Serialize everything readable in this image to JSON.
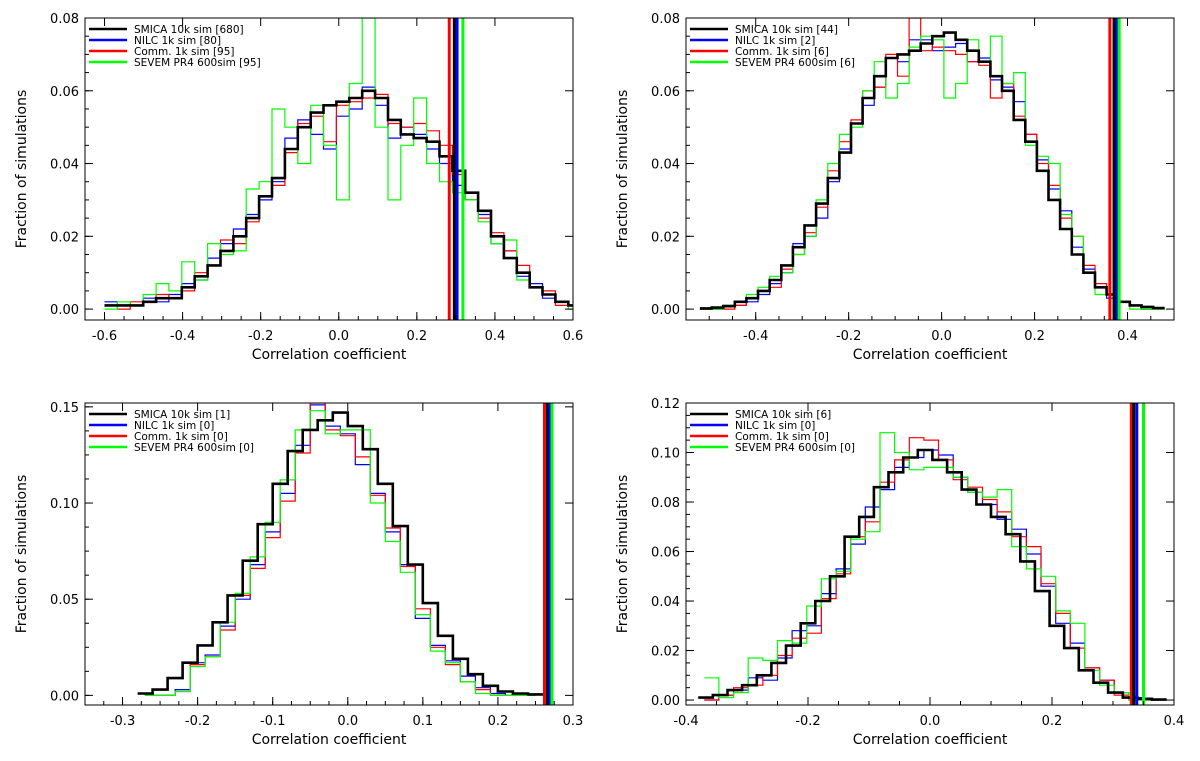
{
  "chart_data": [
    {
      "type": "histogram",
      "xlabel": "Correlation coefficient",
      "ylabel": "Fraction of simulations",
      "xlim": [
        -0.65,
        0.6
      ],
      "ylim": [
        -0.003,
        0.08
      ],
      "xticks": [
        -0.6,
        -0.4,
        -0.2,
        0.0,
        0.2,
        0.4,
        0.6
      ],
      "xtick_labels": [
        "-0.6",
        "-0.4",
        "-0.2",
        "0.0",
        "0.2",
        "0.4",
        "0.6"
      ],
      "yticks": [
        0.0,
        0.02,
        0.04,
        0.06,
        0.08
      ],
      "ytick_labels": [
        "0.00",
        "0.02",
        "0.04",
        "0.06",
        "0.08"
      ],
      "legend_position": "top-left",
      "series": [
        {
          "name": "SMICA 10k sim [680]",
          "color": "#000000",
          "width": 2.6,
          "x0": -0.6,
          "binw": 0.033,
          "values": [
            0.001,
            0.001,
            0.001,
            0.002,
            0.003,
            0.003,
            0.006,
            0.009,
            0.012,
            0.016,
            0.02,
            0.025,
            0.031,
            0.036,
            0.044,
            0.05,
            0.054,
            0.056,
            0.057,
            0.058,
            0.06,
            0.058,
            0.052,
            0.048,
            0.047,
            0.046,
            0.042,
            0.038,
            0.032,
            0.027,
            0.02,
            0.014,
            0.01,
            0.006,
            0.004,
            0.002,
            0.001
          ]
        },
        {
          "name": "NILC 1k sim [80]",
          "color": "#0000ff",
          "width": 1.2,
          "x0": -0.6,
          "binw": 0.033,
          "values": [
            0.002,
            0.001,
            0.001,
            0.003,
            0.002,
            0.004,
            0.007,
            0.008,
            0.014,
            0.018,
            0.022,
            0.026,
            0.03,
            0.035,
            0.047,
            0.052,
            0.048,
            0.044,
            0.053,
            0.055,
            0.061,
            0.056,
            0.047,
            0.05,
            0.048,
            0.044,
            0.04,
            0.034,
            0.03,
            0.026,
            0.018,
            0.016,
            0.009,
            0.007,
            0.003,
            0.002,
            0.001
          ]
        },
        {
          "name": "Comm. 1k sim [95]",
          "color": "#ff0000",
          "width": 1.2,
          "x0": -0.6,
          "binw": 0.033,
          "values": [
            0.001,
            0.0,
            0.002,
            0.002,
            0.004,
            0.003,
            0.005,
            0.01,
            0.012,
            0.019,
            0.018,
            0.024,
            0.031,
            0.034,
            0.043,
            0.051,
            0.053,
            0.046,
            0.056,
            0.057,
            0.058,
            0.059,
            0.051,
            0.05,
            0.051,
            0.049,
            0.045,
            0.037,
            0.03,
            0.025,
            0.021,
            0.016,
            0.012,
            0.006,
            0.005,
            0.001,
            0.001
          ]
        },
        {
          "name": "SEVEM PR4 600sim [95]",
          "color": "#00ff00",
          "width": 1.2,
          "x0": -0.6,
          "binw": 0.033,
          "values": [
            0.0,
            0.002,
            0.001,
            0.004,
            0.007,
            0.005,
            0.013,
            0.008,
            0.018,
            0.015,
            0.016,
            0.033,
            0.035,
            0.055,
            0.05,
            0.04,
            0.056,
            0.045,
            0.03,
            0.062,
            0.08,
            0.05,
            0.03,
            0.045,
            0.058,
            0.04,
            0.035,
            0.032,
            0.03,
            0.024,
            0.018,
            0.019,
            0.008,
            0.006,
            0.004,
            0.002,
            0.0
          ]
        }
      ],
      "vlines": [
        {
          "x": 0.283,
          "color": "#ff0000"
        },
        {
          "x": 0.296,
          "color": "#000000"
        },
        {
          "x": 0.303,
          "color": "#0000ff"
        },
        {
          "x": 0.318,
          "color": "#00ff00"
        }
      ]
    },
    {
      "type": "histogram",
      "xlabel": "Correlation coefficient",
      "ylabel": "Fraction of simulations",
      "xlim": [
        -0.55,
        0.5
      ],
      "ylim": [
        -0.003,
        0.08
      ],
      "xticks": [
        -0.4,
        -0.2,
        0.0,
        0.2,
        0.4
      ],
      "xtick_labels": [
        "-0.4",
        "-0.2",
        "0.0",
        "0.2",
        "0.4"
      ],
      "yticks": [
        0.0,
        0.02,
        0.04,
        0.06,
        0.08
      ],
      "ytick_labels": [
        "0.00",
        "0.02",
        "0.04",
        "0.06",
        "0.08"
      ],
      "legend_position": "top-left",
      "series": [
        {
          "name": "SMICA 10k sim [44]",
          "color": "#000000",
          "width": 2.6,
          "x0": -0.52,
          "binw": 0.025,
          "values": [
            0.0002,
            0.0004,
            0.0008,
            0.002,
            0.003,
            0.005,
            0.008,
            0.012,
            0.017,
            0.023,
            0.029,
            0.036,
            0.043,
            0.051,
            0.058,
            0.064,
            0.069,
            0.07,
            0.071,
            0.073,
            0.075,
            0.076,
            0.074,
            0.071,
            0.068,
            0.064,
            0.06,
            0.052,
            0.046,
            0.038,
            0.03,
            0.022,
            0.015,
            0.01,
            0.006,
            0.004,
            0.002,
            0.001,
            0.0006,
            0.0003
          ]
        },
        {
          "name": "NILC 1k sim [2]",
          "color": "#0000ff",
          "width": 1.2,
          "x0": -0.52,
          "binw": 0.025,
          "values": [
            0.0,
            0.0,
            0.001,
            0.001,
            0.002,
            0.004,
            0.007,
            0.01,
            0.018,
            0.02,
            0.025,
            0.035,
            0.044,
            0.051,
            0.056,
            0.061,
            0.069,
            0.068,
            0.074,
            0.074,
            0.071,
            0.072,
            0.073,
            0.068,
            0.069,
            0.063,
            0.061,
            0.057,
            0.048,
            0.041,
            0.033,
            0.027,
            0.017,
            0.011,
            0.006,
            0.003,
            0.002,
            0.001,
            0.0,
            0.0
          ]
        },
        {
          "name": "Comm. 1k sim [6]",
          "color": "#ff0000",
          "width": 1.2,
          "x0": -0.52,
          "binw": 0.025,
          "values": [
            0.0,
            0.0,
            0.0,
            0.001,
            0.003,
            0.005,
            0.006,
            0.011,
            0.015,
            0.021,
            0.028,
            0.038,
            0.046,
            0.052,
            0.06,
            0.061,
            0.07,
            0.064,
            0.08,
            0.071,
            0.072,
            0.071,
            0.07,
            0.068,
            0.067,
            0.058,
            0.062,
            0.053,
            0.048,
            0.04,
            0.034,
            0.025,
            0.02,
            0.012,
            0.007,
            0.004,
            0.002,
            0.001,
            0.0,
            0.0
          ]
        },
        {
          "name": "SEVEM PR4 600sim [6]",
          "color": "#00ff00",
          "width": 1.2,
          "x0": -0.52,
          "binw": 0.025,
          "values": [
            0.0,
            0.0,
            0.001,
            0.002,
            0.004,
            0.006,
            0.009,
            0.01,
            0.015,
            0.02,
            0.03,
            0.04,
            0.048,
            0.05,
            0.06,
            0.068,
            0.058,
            0.062,
            0.072,
            0.075,
            0.074,
            0.058,
            0.062,
            0.074,
            0.068,
            0.075,
            0.062,
            0.065,
            0.045,
            0.042,
            0.04,
            0.026,
            0.02,
            0.01,
            0.004,
            0.004,
            0.002,
            0.0,
            0.0,
            0.0
          ]
        }
      ],
      "vlines": [
        {
          "x": 0.362,
          "color": "#ff0000"
        },
        {
          "x": 0.371,
          "color": "#000000"
        },
        {
          "x": 0.377,
          "color": "#0000ff"
        },
        {
          "x": 0.382,
          "color": "#00ff00"
        }
      ]
    },
    {
      "type": "histogram",
      "xlabel": "Correlation coefficient",
      "ylabel": "Fraction of simulations",
      "xlim": [
        -0.35,
        0.3
      ],
      "ylim": [
        -0.005,
        0.152
      ],
      "xticks": [
        -0.3,
        -0.2,
        -0.1,
        0.0,
        0.1,
        0.2,
        0.3
      ],
      "xtick_labels": [
        "-0.3",
        "-0.2",
        "-0.1",
        "0.0",
        "0.1",
        "0.2",
        "0.3"
      ],
      "yticks": [
        0.0,
        0.05,
        0.1,
        0.15
      ],
      "ytick_labels": [
        "0.00",
        "0.05",
        "0.10",
        "0.15"
      ],
      "legend_position": "top-left",
      "series": [
        {
          "name": "SMICA 10k sim [1]",
          "color": "#000000",
          "width": 2.6,
          "x0": -0.28,
          "binw": 0.02,
          "values": [
            0.001,
            0.003,
            0.009,
            0.017,
            0.026,
            0.038,
            0.052,
            0.07,
            0.089,
            0.11,
            0.127,
            0.138,
            0.143,
            0.147,
            0.14,
            0.128,
            0.11,
            0.088,
            0.068,
            0.048,
            0.031,
            0.019,
            0.011,
            0.005,
            0.002,
            0.001,
            0.0005
          ]
        },
        {
          "name": "NILC 1k sim [0]",
          "color": "#0000ff",
          "width": 1.2,
          "x0": -0.27,
          "binw": 0.02,
          "values": [
            0.0,
            0.0,
            0.003,
            0.017,
            0.021,
            0.036,
            0.05,
            0.068,
            0.085,
            0.105,
            0.13,
            0.151,
            0.14,
            0.136,
            0.12,
            0.105,
            0.085,
            0.068,
            0.04,
            0.026,
            0.018,
            0.01,
            0.004,
            0.001,
            0.0,
            0.0
          ]
        },
        {
          "name": "Comm. 1k sim [0]",
          "color": "#ff0000",
          "width": 1.2,
          "x0": -0.27,
          "binw": 0.02,
          "values": [
            0.0,
            0.0,
            0.002,
            0.016,
            0.02,
            0.034,
            0.052,
            0.066,
            0.082,
            0.101,
            0.126,
            0.152,
            0.138,
            0.135,
            0.124,
            0.104,
            0.087,
            0.067,
            0.045,
            0.025,
            0.016,
            0.007,
            0.003,
            0.0,
            0.0,
            0.0
          ]
        },
        {
          "name": "SEVEM PR4 600sim [0]",
          "color": "#00ff00",
          "width": 1.2,
          "x0": -0.27,
          "binw": 0.02,
          "values": [
            0.0,
            0.0,
            0.002,
            0.015,
            0.02,
            0.038,
            0.053,
            0.072,
            0.09,
            0.112,
            0.138,
            0.148,
            0.136,
            0.138,
            0.138,
            0.1,
            0.08,
            0.064,
            0.042,
            0.023,
            0.017,
            0.007,
            0.001,
            0.0,
            0.0,
            0.0
          ]
        }
      ],
      "vlines": [
        {
          "x": 0.262,
          "color": "#ff0000"
        },
        {
          "x": 0.266,
          "color": "#000000"
        },
        {
          "x": 0.269,
          "color": "#0000ff"
        },
        {
          "x": 0.272,
          "color": "#00ff00"
        }
      ]
    },
    {
      "type": "histogram",
      "xlabel": "Correlation coefficient",
      "ylabel": "Fraction of simulations",
      "xlim": [
        -0.4,
        0.4
      ],
      "ylim": [
        -0.002,
        0.12
      ],
      "xticks": [
        -0.4,
        -0.2,
        0.0,
        0.2,
        0.4
      ],
      "xtick_labels": [
        "-0.4",
        "-0.2",
        "0.0",
        "0.2",
        "0.4"
      ],
      "yticks": [
        0.0,
        0.02,
        0.04,
        0.06,
        0.08,
        0.1,
        0.12
      ],
      "ytick_labels": [
        "0.00",
        "0.02",
        "0.04",
        "0.06",
        "0.08",
        "0.10",
        "0.12"
      ],
      "legend_position": "top-left",
      "series": [
        {
          "name": "SMICA 10k sim [6]",
          "color": "#000000",
          "width": 2.6,
          "x0": -0.38,
          "binw": 0.024,
          "values": [
            0.001,
            0.002,
            0.004,
            0.006,
            0.01,
            0.015,
            0.022,
            0.031,
            0.04,
            0.05,
            0.066,
            0.074,
            0.086,
            0.092,
            0.098,
            0.101,
            0.097,
            0.092,
            0.085,
            0.079,
            0.074,
            0.067,
            0.056,
            0.044,
            0.03,
            0.021,
            0.012,
            0.007,
            0.003,
            0.001,
            0.0005,
            0.0002
          ]
        },
        {
          "name": "NILC 1k sim [0]",
          "color": "#0000ff",
          "width": 1.2,
          "x0": -0.37,
          "binw": 0.024,
          "values": [
            0.0,
            0.002,
            0.004,
            0.009,
            0.008,
            0.017,
            0.028,
            0.03,
            0.043,
            0.053,
            0.063,
            0.078,
            0.085,
            0.094,
            0.098,
            0.101,
            0.099,
            0.09,
            0.084,
            0.079,
            0.073,
            0.069,
            0.059,
            0.046,
            0.031,
            0.023,
            0.013,
            0.008,
            0.003,
            0.001,
            0.0
          ]
        },
        {
          "name": "Comm. 1k sim [0]",
          "color": "#ff0000",
          "width": 1.2,
          "x0": -0.37,
          "binw": 0.024,
          "values": [
            0.0,
            0.002,
            0.005,
            0.006,
            0.01,
            0.018,
            0.025,
            0.027,
            0.041,
            0.051,
            0.066,
            0.072,
            0.088,
            0.097,
            0.106,
            0.105,
            0.097,
            0.089,
            0.086,
            0.081,
            0.076,
            0.066,
            0.062,
            0.047,
            0.035,
            0.021,
            0.013,
            0.008,
            0.002,
            0.0,
            0.0
          ]
        },
        {
          "name": "SEVEM PR4 600sim [0]",
          "color": "#00ff00",
          "width": 1.2,
          "x0": -0.37,
          "binw": 0.024,
          "values": [
            0.009,
            0.001,
            0.003,
            0.017,
            0.016,
            0.024,
            0.023,
            0.038,
            0.049,
            0.052,
            0.065,
            0.068,
            0.108,
            0.1,
            0.093,
            0.094,
            0.094,
            0.09,
            0.084,
            0.082,
            0.085,
            0.062,
            0.053,
            0.05,
            0.036,
            0.031,
            0.012,
            0.006,
            0.003,
            0.0,
            0.0
          ]
        }
      ],
      "vlines": [
        {
          "x": 0.33,
          "color": "#ff0000"
        },
        {
          "x": 0.334,
          "color": "#000000"
        },
        {
          "x": 0.339,
          "color": "#0000ff"
        },
        {
          "x": 0.35,
          "color": "#00ff00"
        }
      ]
    }
  ]
}
